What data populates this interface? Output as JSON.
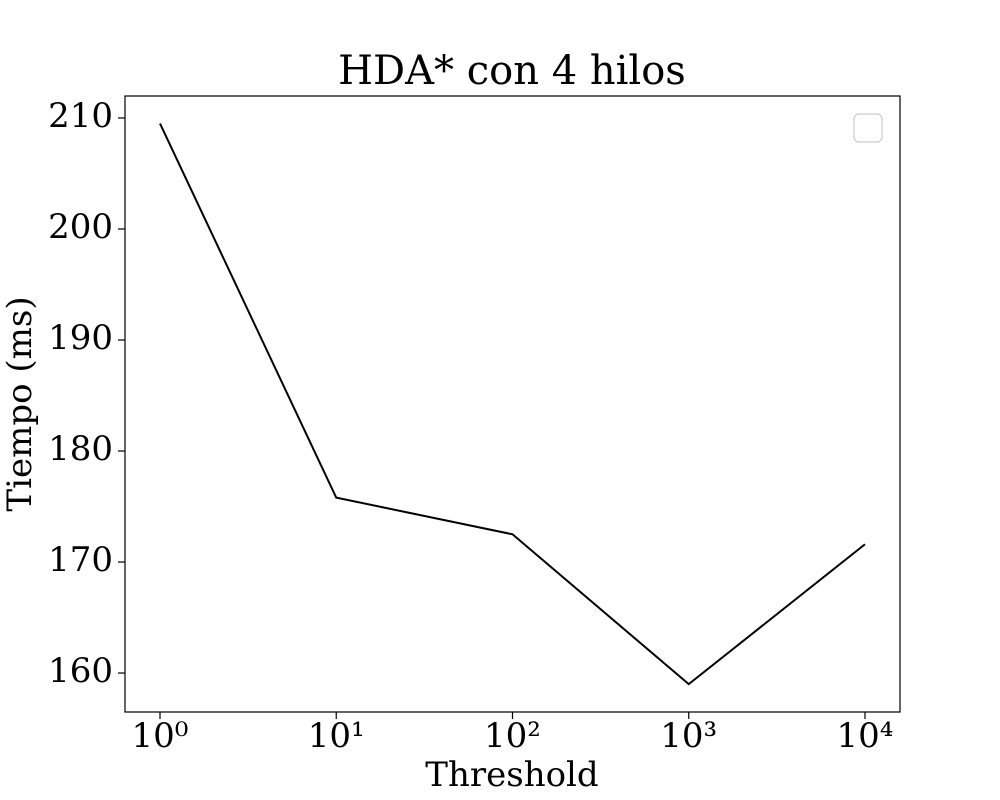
{
  "chart_data": {
    "type": "line",
    "title": "HDA* con 4 hilos",
    "x_label": "Threshold",
    "y_label": "Tiempo (ms)",
    "x": [
      1,
      10,
      100,
      1000,
      10000
    ],
    "series": [
      {
        "color": "#000000",
        "values": [
          209.5,
          175.8,
          172.5,
          159.0,
          171.6
        ]
      }
    ],
    "x_scale": "log",
    "xlim": [
      0.633,
      15800
    ],
    "xticks": [
      {
        "value": 1,
        "label": "10⁰"
      },
      {
        "value": 10,
        "label": "10¹"
      },
      {
        "value": 100,
        "label": "10²"
      },
      {
        "value": 1000,
        "label": "10³"
      },
      {
        "value": 10000,
        "label": "10⁴"
      }
    ],
    "ylim": [
      156.49,
      211.98
    ],
    "yticks": [
      160,
      170,
      180,
      190,
      200,
      210
    ],
    "grid": false,
    "legend": "upper right"
  }
}
